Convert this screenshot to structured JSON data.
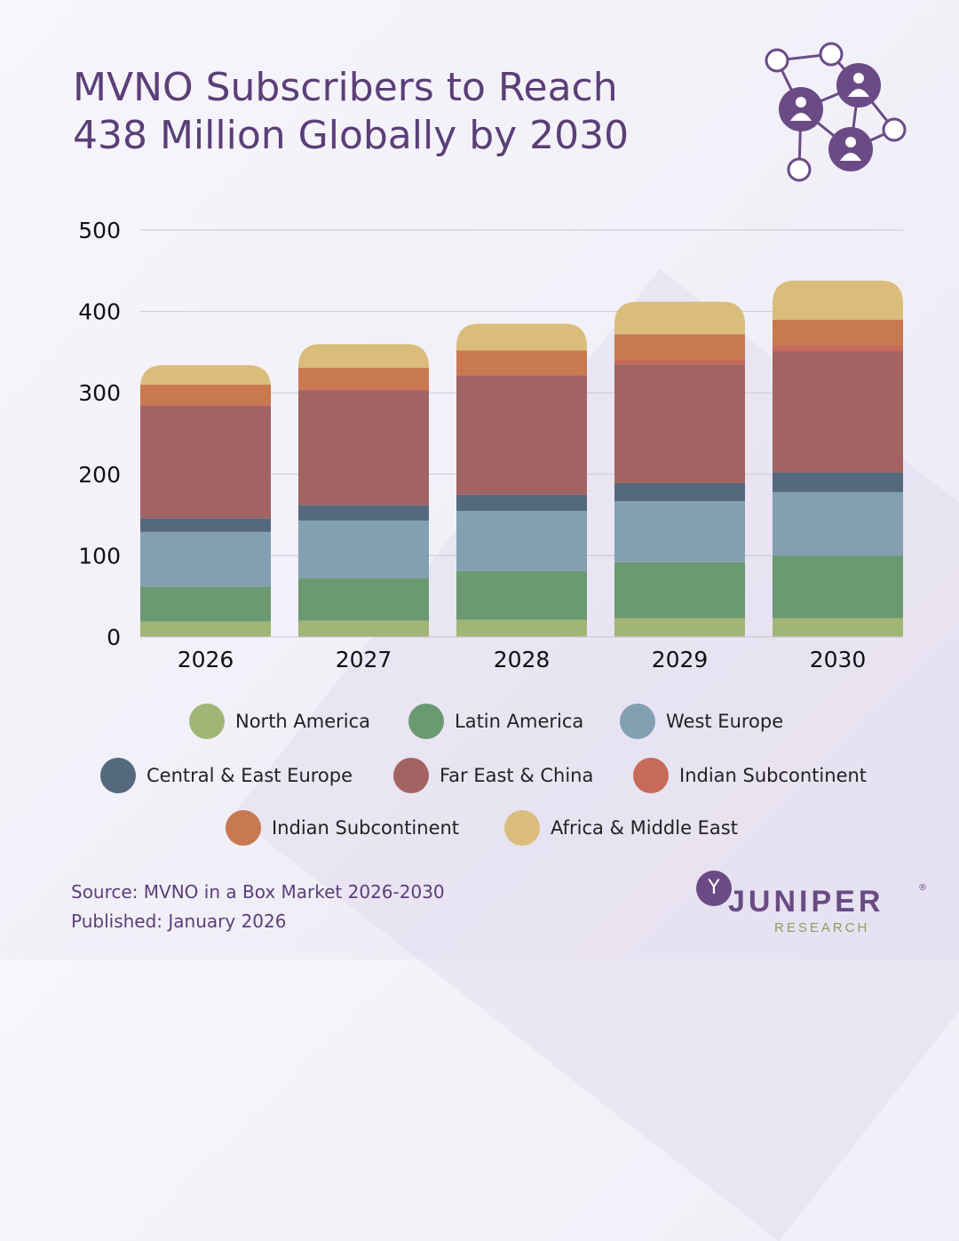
{
  "title_line1": "MVNO Subscribers to Reach",
  "title_line2": "438 Million Globally by 2030",
  "footer": {
    "source": "Source: MVNO in a Box Market 2026-2030",
    "published": "Published: January 2026"
  },
  "logo": {
    "name": "JUNIPER",
    "sub": "RESEARCH",
    "reg": "®"
  },
  "icons": {
    "network": "network-people-icon",
    "logo": "juniper-logo-icon"
  },
  "colors": {
    "title": "#5b3f78",
    "grid": "#c9c6d2",
    "tick_text": "#111111"
  },
  "chart_data": {
    "type": "bar",
    "stacked": true,
    "categories": [
      "2026",
      "2027",
      "2028",
      "2029",
      "2030"
    ],
    "ylim": [
      0,
      500
    ],
    "yticks": [
      0,
      100,
      200,
      300,
      400,
      500
    ],
    "grid": true,
    "legend_position": "bottom",
    "series": [
      {
        "name": "North America",
        "color": "#a1b577",
        "values": [
          19,
          20,
          21,
          23,
          23
        ]
      },
      {
        "name": "Latin America",
        "color": "#6b9972",
        "values": [
          43,
          52,
          60,
          69,
          77
        ]
      },
      {
        "name": "West Europe",
        "color": "#82a0b1",
        "values": [
          67,
          71,
          74,
          75,
          78
        ]
      },
      {
        "name": "Central & East Europe",
        "color": "#54697e",
        "values": [
          17,
          19,
          20,
          22,
          24
        ]
      },
      {
        "name": "Far East & China",
        "color": "#a26462",
        "values": [
          138,
          141,
          146,
          146,
          149
        ]
      },
      {
        "name": "Indian Subcontinent",
        "color": "#c76a5a",
        "values": [
          2,
          2,
          2,
          6,
          8
        ]
      },
      {
        "name": "Indian Subcontinent",
        "color": "#c8794f",
        "values": [
          24,
          26,
          29,
          31,
          31
        ]
      },
      {
        "name": "Africa & Middle East",
        "color": "#dabd7b",
        "values": [
          24,
          29,
          33,
          40,
          48
        ]
      }
    ]
  }
}
